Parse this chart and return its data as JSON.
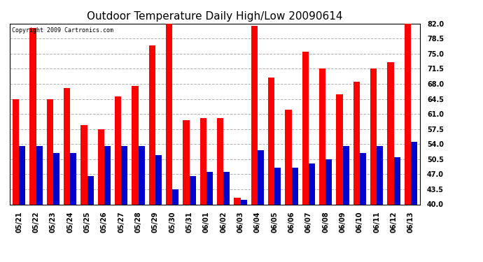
{
  "title": "Outdoor Temperature Daily High/Low 20090614",
  "copyright": "Copyright 2009 Cartronics.com",
  "categories": [
    "05/21",
    "05/22",
    "05/23",
    "05/24",
    "05/25",
    "05/26",
    "05/27",
    "05/28",
    "05/29",
    "05/30",
    "05/31",
    "06/01",
    "06/02",
    "06/03",
    "06/04",
    "06/05",
    "06/06",
    "06/07",
    "06/08",
    "06/09",
    "06/10",
    "06/11",
    "06/12",
    "06/13"
  ],
  "highs": [
    64.5,
    81.0,
    64.5,
    67.0,
    58.5,
    57.5,
    65.0,
    67.5,
    77.0,
    82.5,
    59.5,
    60.0,
    60.0,
    41.5,
    81.5,
    69.5,
    62.0,
    75.5,
    71.5,
    65.5,
    68.5,
    71.5,
    73.0,
    82.0
  ],
  "lows": [
    53.5,
    53.5,
    52.0,
    52.0,
    46.5,
    53.5,
    53.5,
    53.5,
    51.5,
    43.5,
    46.5,
    47.5,
    47.5,
    41.0,
    52.5,
    48.5,
    48.5,
    49.5,
    50.5,
    53.5,
    52.0,
    53.5,
    51.0,
    54.5
  ],
  "bar_color_high": "#ff0000",
  "bar_color_low": "#0000cc",
  "bg_color": "#ffffff",
  "grid_color": "#b0b0b0",
  "ylim": [
    40.0,
    82.0
  ],
  "yticks": [
    40.0,
    43.5,
    47.0,
    50.5,
    54.0,
    57.5,
    61.0,
    64.5,
    68.0,
    71.5,
    75.0,
    78.5,
    82.0
  ],
  "title_fontsize": 11,
  "tick_fontsize": 7,
  "copyright_fontsize": 6,
  "bar_width": 0.38
}
